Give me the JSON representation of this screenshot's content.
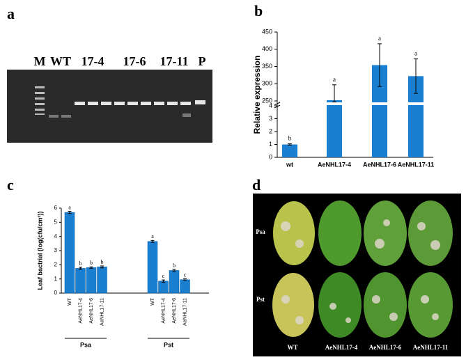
{
  "panel_labels": [
    "a",
    "b",
    "c",
    "d"
  ],
  "gel": {
    "lanes": [
      "M",
      "WT",
      "17-4",
      "17-6",
      "17-11",
      "P"
    ]
  },
  "leaves": {
    "rows": [
      "Psa",
      "Pst"
    ],
    "columns": [
      "WT",
      "AeNHL17-4",
      "AeNHL17-6",
      "AeNHL17-11"
    ]
  },
  "chart_data": [
    {
      "type": "bar",
      "ylabel": "Relative expression",
      "categories": [
        "wt",
        "AeNHL17-4",
        "AeNHL17-6",
        "AeNHL17-11"
      ],
      "values": [
        1,
        252,
        354,
        322
      ],
      "errors": [
        0.05,
        45,
        62,
        50
      ],
      "letters": [
        "b",
        "a",
        "a",
        "a"
      ],
      "color": "#1a7fd0",
      "ylim": [
        0,
        450
      ],
      "ybreak": [
        4,
        250
      ],
      "yticks": [
        0,
        1,
        2,
        3,
        4,
        250,
        300,
        350,
        400,
        450
      ]
    },
    {
      "type": "grouped_bar",
      "ylabel": "Leaf bactrial (log(cfu/cm²))",
      "categories": [
        "WT",
        "AeNHL17-4",
        "AeNHL17-6",
        "AeNHL17-11"
      ],
      "groups": [
        {
          "name": "Psa",
          "values": [
            5.7,
            1.75,
            1.8,
            1.85
          ],
          "errors": [
            0.08,
            0.07,
            0.05,
            0.07
          ],
          "letters": [
            "a",
            "b",
            "b",
            "b"
          ]
        },
        {
          "name": "Pst",
          "values": [
            3.65,
            0.85,
            1.6,
            0.95
          ],
          "errors": [
            0.07,
            0.08,
            0.07,
            0.06
          ],
          "letters": [
            "a",
            "c",
            "b",
            "c"
          ]
        }
      ],
      "color": "#1a7fd0",
      "ylim": [
        0,
        6
      ],
      "yticks": [
        0,
        1,
        2,
        3,
        4,
        5,
        6
      ]
    }
  ]
}
